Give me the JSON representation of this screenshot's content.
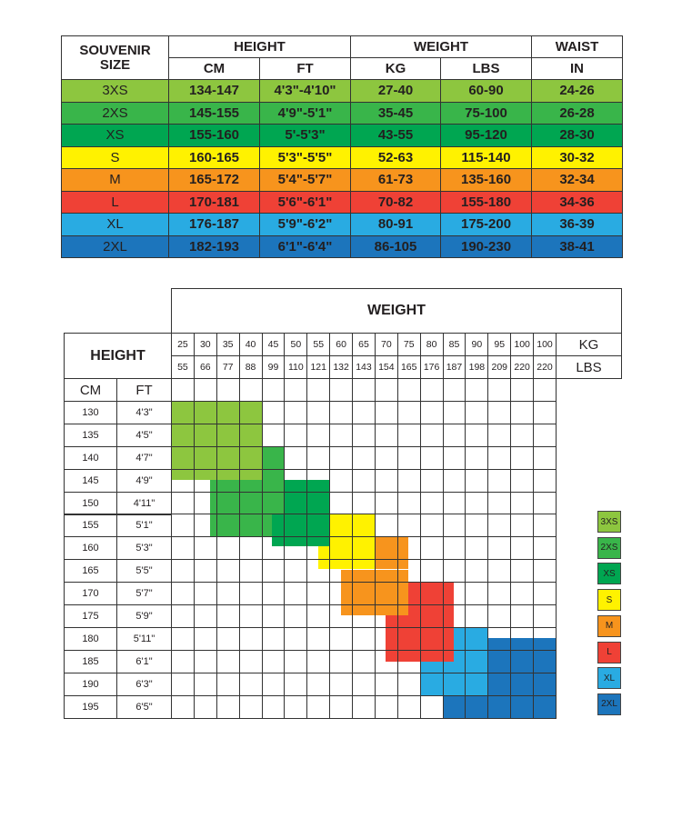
{
  "size_table": {
    "headers": {
      "size": "SOUVENIR SIZE",
      "height": "HEIGHT",
      "weight": "WEIGHT",
      "waist": "WAIST",
      "cm": "CM",
      "ft": "FT",
      "kg": "KG",
      "lbs": "LBS",
      "in": "IN"
    },
    "rows": [
      {
        "size": "3XS",
        "cm": "134-147",
        "ft": "4'3\"-4'10\"",
        "kg": "27-40",
        "lbs": "60-90",
        "in": "24-26",
        "color": "#8dc63f"
      },
      {
        "size": "2XS",
        "cm": "145-155",
        "ft": "4'9\"-5'1\"",
        "kg": "35-45",
        "lbs": "75-100",
        "in": "26-28",
        "color": "#39b54a"
      },
      {
        "size": "XS",
        "cm": "155-160",
        "ft": "5'-5'3\"",
        "kg": "43-55",
        "lbs": "95-120",
        "in": "28-30",
        "color": "#00a651"
      },
      {
        "size": "S",
        "cm": "160-165",
        "ft": "5'3\"-5'5\"",
        "kg": "52-63",
        "lbs": "115-140",
        "in": "30-32",
        "color": "#fff200"
      },
      {
        "size": "M",
        "cm": "165-172",
        "ft": "5'4\"-5'7\"",
        "kg": "61-73",
        "lbs": "135-160",
        "in": "32-34",
        "color": "#f7941d"
      },
      {
        "size": "L",
        "cm": "170-181",
        "ft": "5'6\"-6'1\"",
        "kg": "70-82",
        "lbs": "155-180",
        "in": "34-36",
        "color": "#ef4136"
      },
      {
        "size": "XL",
        "cm": "176-187",
        "ft": "5'9\"-6'2\"",
        "kg": "80-91",
        "lbs": "175-200",
        "in": "36-39",
        "color": "#29abe2"
      },
      {
        "size": "2XL",
        "cm": "182-193",
        "ft": "6'1\"-6'4\"",
        "kg": "86-105",
        "lbs": "190-230",
        "in": "38-41",
        "color": "#1c75bc"
      }
    ]
  },
  "grid_chart": {
    "weight_title": "WEIGHT",
    "height_title": "HEIGHT",
    "kg_label": "KG",
    "lbs_label": "LBS",
    "cm_label": "CM",
    "ft_label": "FT",
    "kg": [
      "25",
      "30",
      "35",
      "40",
      "45",
      "50",
      "55",
      "60",
      "65",
      "70",
      "75",
      "80",
      "85",
      "90",
      "95",
      "100",
      "100"
    ],
    "lbs": [
      "55",
      "66",
      "77",
      "88",
      "99",
      "110",
      "121",
      "132",
      "143",
      "154",
      "165",
      "176",
      "187",
      "198",
      "209",
      "220",
      "220"
    ],
    "heights": [
      {
        "cm": "130",
        "ft": "4'3\""
      },
      {
        "cm": "135",
        "ft": "4'5\""
      },
      {
        "cm": "140",
        "ft": "4'7\""
      },
      {
        "cm": "145",
        "ft": "4'9\""
      },
      {
        "cm": "150",
        "ft": "4'11\""
      },
      {
        "cm": "155",
        "ft": "5'1\""
      },
      {
        "cm": "160",
        "ft": "5'3\""
      },
      {
        "cm": "165",
        "ft": "5'5\""
      },
      {
        "cm": "170",
        "ft": "5'7\""
      },
      {
        "cm": "175",
        "ft": "5'9\""
      },
      {
        "cm": "180",
        "ft": "5'11\""
      },
      {
        "cm": "185",
        "ft": "6'1\""
      },
      {
        "cm": "190",
        "ft": "6'3\""
      },
      {
        "cm": "195",
        "ft": "6'5\""
      }
    ],
    "legend": [
      "3XS",
      "2XS",
      "XS",
      "S",
      "M",
      "L",
      "XL",
      "2XL"
    ]
  }
}
